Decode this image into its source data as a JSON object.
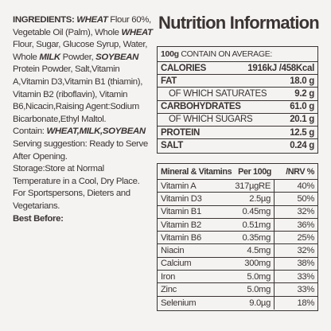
{
  "ingredients": {
    "heading": "INGREDIENTS:",
    "w1": "WHEAT",
    "t1": " Flour 60%, Vegetable Oil (Palm), Whole ",
    "w2": "WHEAT",
    "t2": " Flour, Sugar, Glucose Syrup, Water, Whole ",
    "w3": "MILK",
    "t3": " Powder, ",
    "w4": "SOYBEAN",
    "t4": " Protein Powder, Salt,Vitamin A,Vitamin D3,Vitamin B1 (thiamin), Vitamin B2 (riboflavin), Vitamin B6,Nicacin,Raising Agent:Sodium Bicarbonate,Ethyl Maltol.",
    "contains_label": "Contain: ",
    "contains_allergens": "WHEAT,MILK,SOYBEAN",
    "serving": "Serving suggestion: Ready to Serve After Opening.",
    "storage": "Storage:Store at Normal Temperature in a Cool, Dry Place.",
    "for_whom": "For Sportspersons, Dieters and Vegetarians.",
    "best_before": "Best Before:"
  },
  "nutrition": {
    "title": "Nutrition Information",
    "header_bold": "100g",
    "header_rest": " CONTAIN ON AVERAGE:",
    "rows": [
      {
        "label": "CALORIES",
        "value": "1916kJ /458Kcal"
      },
      {
        "label": "FAT",
        "value": "18.0 g"
      },
      {
        "label": "OF WHICH SATURATES",
        "value": "9.2 g"
      },
      {
        "label": "CARBOHYDRATES",
        "value": "61.0 g"
      },
      {
        "label": "OF WHICH SUGARS",
        "value": "20.1 g"
      },
      {
        "label": "PROTEIN",
        "value": "12.5 g"
      },
      {
        "label": "SALT",
        "value": "0.24 g"
      }
    ]
  },
  "minerals": {
    "header_name": "Mineral & Vitamins",
    "header_per": "Per 100g",
    "header_nrv": "/NRV %",
    "rows": [
      {
        "name": "Vitamin A",
        "amount": "317µgRE",
        "nrv": "40%"
      },
      {
        "name": "Vitamin D3",
        "amount": "2.5µg",
        "nrv": "50%"
      },
      {
        "name": "Vitamin B1",
        "amount": "0.45mg",
        "nrv": "32%"
      },
      {
        "name": "Vitamin B2",
        "amount": "0.51mg",
        "nrv": "36%"
      },
      {
        "name": "Vitamin B6",
        "amount": "0.35mg",
        "nrv": "25%"
      },
      {
        "name": "Niacin",
        "amount": "4.5mg",
        "nrv": "32%"
      },
      {
        "name": "Calcium",
        "amount": "300mg",
        "nrv": "38%"
      },
      {
        "name": "Iron",
        "amount": "5.0mg",
        "nrv": "33%"
      },
      {
        "name": "Zinc",
        "amount": "5.0mg",
        "nrv": "33%"
      },
      {
        "name": "Selenium",
        "amount": "9.0µg",
        "nrv": "18%"
      }
    ]
  }
}
